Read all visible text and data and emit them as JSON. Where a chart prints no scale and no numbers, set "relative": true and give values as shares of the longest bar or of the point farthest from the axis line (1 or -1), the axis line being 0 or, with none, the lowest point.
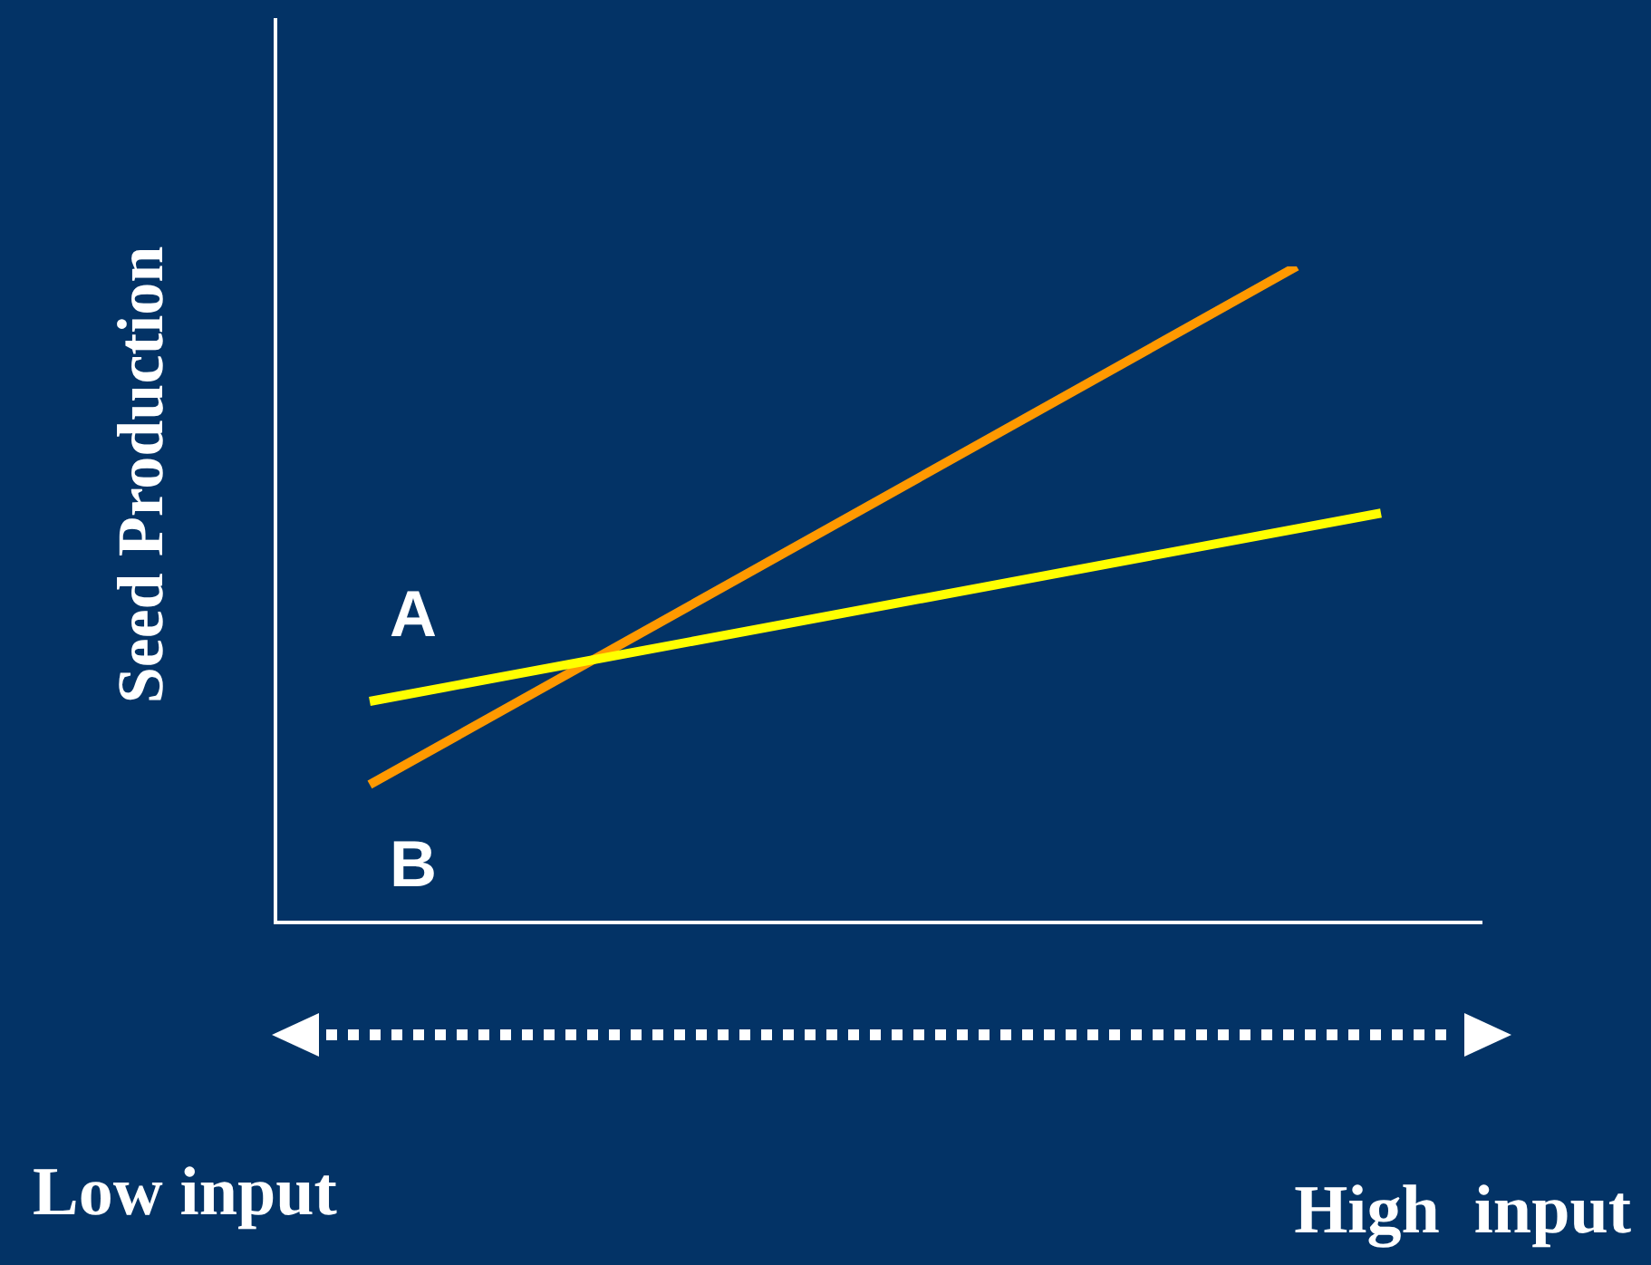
{
  "chart_data": {
    "type": "line",
    "relative": true,
    "ylabel": "Seed Production",
    "legend": false,
    "marker": "none",
    "line_style": "solid",
    "categories": [
      null,
      null,
      null,
      null,
      null,
      null,
      null,
      null,
      null,
      null,
      null,
      null,
      null
    ],
    "annotations": [
      "Low input",
      "High  input"
    ],
    "series": [
      {
        "name": "A",
        "color": "#ffff00",
        "values": [
          0.337,
          null,
          null,
          null,
          null,
          null,
          null,
          null,
          null,
          null,
          null,
          null,
          0.624
        ]
      },
      {
        "name": "B",
        "color": "#ff9900",
        "values": [
          0.21,
          null,
          null,
          null,
          null,
          null,
          null,
          null,
          null,
          null,
          null,
          1,
          null
        ]
      }
    ]
  }
}
